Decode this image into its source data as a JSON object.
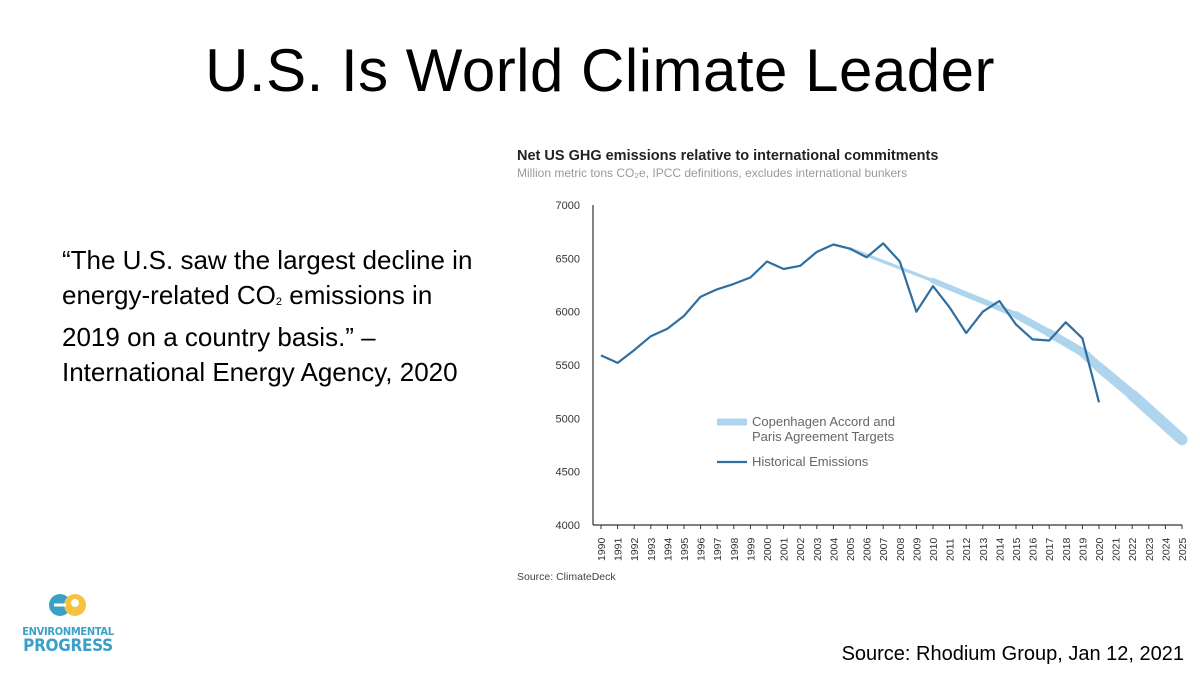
{
  "slide": {
    "title": "U.S. Is World Climate Leader",
    "quote_pre": "“The U.S. saw the largest decline in energy-related CO",
    "quote_sub": "2",
    "quote_post": " emissions in 2019 on a country basis.” – International Energy Agency, 2020",
    "source": "Source: Rhodium Group, Jan 12, 2021"
  },
  "logo": {
    "line1": "ENVIRONMENTAL",
    "line2": "PROGRESS"
  },
  "colors": {
    "historical": "#2f6fa0",
    "target": "#aed4ee",
    "logo_blue": "#3aa0c8",
    "logo_yellow": "#f5c242"
  },
  "chart_data": {
    "type": "line",
    "title": "Net US GHG emissions relative to international commitments",
    "subtitle": "Million metric tons CO₂e, IPCC definitions, excludes international bunkers",
    "source": "Source: ClimateDeck",
    "xlabel": "",
    "ylabel": "",
    "ylim": [
      4000,
      7000
    ],
    "yticks": [
      4000,
      4500,
      5000,
      5500,
      6000,
      6500,
      7000
    ],
    "x": [
      1990,
      1991,
      1992,
      1993,
      1994,
      1995,
      1996,
      1997,
      1998,
      1999,
      2000,
      2001,
      2002,
      2003,
      2004,
      2005,
      2006,
      2007,
      2008,
      2009,
      2010,
      2011,
      2012,
      2013,
      2014,
      2015,
      2016,
      2017,
      2018,
      2019,
      2020,
      2021,
      2022,
      2023,
      2024,
      2025
    ],
    "legend": {
      "placement": "lower-center",
      "target_label_1": "Copenhagen Accord and",
      "target_label_2": "Paris Agreement Targets",
      "historical_label": "Historical Emissions"
    },
    "series": [
      {
        "name": "Historical Emissions",
        "x": [
          1990,
          1991,
          1992,
          1993,
          1994,
          1995,
          1996,
          1997,
          1998,
          1999,
          2000,
          2001,
          2002,
          2003,
          2004,
          2005,
          2006,
          2007,
          2008,
          2009,
          2010,
          2011,
          2012,
          2013,
          2014,
          2015,
          2016,
          2017,
          2018,
          2019,
          2020
        ],
        "values": [
          5590,
          5520,
          5640,
          5770,
          5840,
          5960,
          6140,
          6210,
          6260,
          6320,
          6470,
          6400,
          6430,
          6560,
          6630,
          6590,
          6510,
          6640,
          6470,
          6000,
          6240,
          6040,
          5800,
          6000,
          6100,
          5880,
          5740,
          5730,
          5900,
          5750,
          5150
        ]
      },
      {
        "name": "Copenhagen Accord and Paris Agreement Targets",
        "x": [
          2005,
          2010,
          2015,
          2017,
          2019,
          2020,
          2022,
          2025
        ],
        "values": [
          6590,
          6290,
          5970,
          5800,
          5620,
          5480,
          5220,
          4800
        ]
      }
    ]
  }
}
